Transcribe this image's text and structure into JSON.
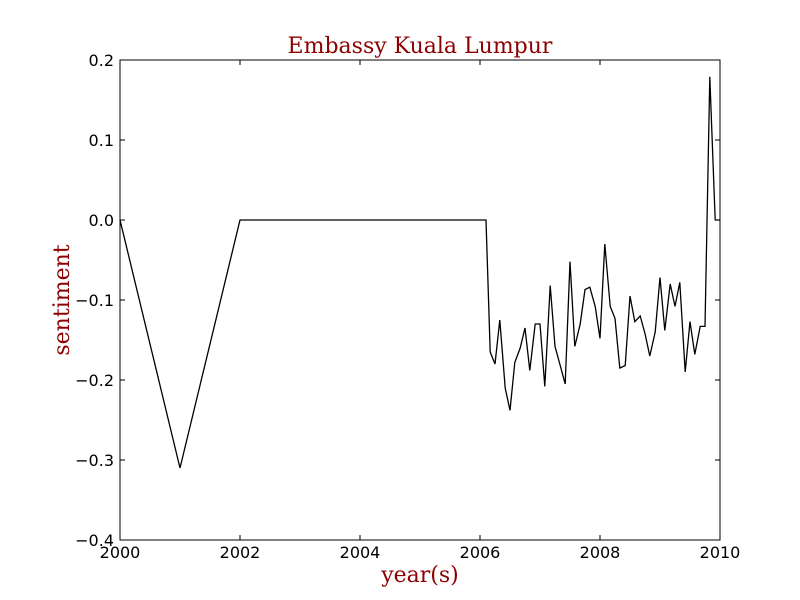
{
  "chart_data": {
    "type": "line",
    "title": "Embassy Kuala Lumpur",
    "xlabel": "year(s)",
    "ylabel": "sentiment",
    "xlim": [
      2000,
      2010
    ],
    "ylim": [
      -0.4,
      0.2
    ],
    "xticks": [
      2000,
      2002,
      2004,
      2006,
      2008,
      2010
    ],
    "xtick_labels": [
      "2000",
      "2002",
      "2004",
      "2006",
      "2008",
      "2010"
    ],
    "yticks": [
      -0.4,
      -0.3,
      -0.2,
      -0.1,
      0.0,
      0.1,
      0.2
    ],
    "ytick_labels": [
      "−0.4",
      "−0.3",
      "−0.2",
      "−0.1",
      "0.0",
      "0.1",
      "0.2"
    ],
    "grid": false,
    "colors": {
      "title": "#8b0000",
      "labels": "#8b0000",
      "line": "#000000"
    },
    "series": [
      {
        "x": [
          2000.0,
          2001.0,
          2002.0,
          2006.1,
          2006.17,
          2006.25,
          2006.33,
          2006.42,
          2006.5,
          2006.58,
          2006.67,
          2006.75,
          2006.83,
          2006.92,
          2007.0,
          2007.08,
          2007.17,
          2007.25,
          2007.33,
          2007.42,
          2007.5,
          2007.58,
          2007.67,
          2007.75,
          2007.83,
          2007.92,
          2008.0,
          2008.08,
          2008.17,
          2008.25,
          2008.33,
          2008.42,
          2008.5,
          2008.58,
          2008.67,
          2008.75,
          2008.83,
          2008.92,
          2009.0,
          2009.08,
          2009.17,
          2009.25,
          2009.33,
          2009.42,
          2009.5,
          2009.58,
          2009.67,
          2009.75,
          2009.83,
          2009.92,
          2010.0
        ],
        "y": [
          0.0,
          -0.31,
          0.0,
          0.0,
          -0.165,
          -0.18,
          -0.125,
          -0.21,
          -0.238,
          -0.178,
          -0.16,
          -0.135,
          -0.188,
          -0.13,
          -0.13,
          -0.208,
          -0.082,
          -0.158,
          -0.18,
          -0.205,
          -0.052,
          -0.158,
          -0.13,
          -0.087,
          -0.084,
          -0.108,
          -0.148,
          -0.03,
          -0.108,
          -0.123,
          -0.185,
          -0.182,
          -0.095,
          -0.127,
          -0.12,
          -0.142,
          -0.17,
          -0.14,
          -0.072,
          -0.138,
          -0.08,
          -0.108,
          -0.078,
          -0.19,
          -0.127,
          -0.168,
          -0.133,
          -0.133,
          0.179,
          0.0,
          0.0
        ]
      }
    ]
  }
}
